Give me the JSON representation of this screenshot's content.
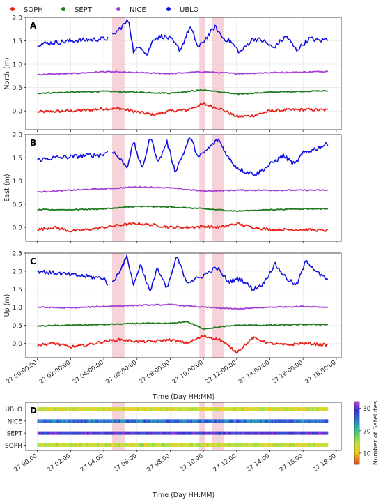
{
  "legend": [
    {
      "name": "SOPH",
      "color": "#e8221b"
    },
    {
      "name": "SEPT",
      "color": "#1f7a1f"
    },
    {
      "name": "NICE",
      "color": "#a33fd6"
    },
    {
      "name": "UBLO",
      "color": "#1010e0"
    }
  ],
  "shade_color": "#f2c4cc",
  "chart_data": [
    {
      "type": "line",
      "panel": "A",
      "xlabel": "",
      "ylabel": "North  (m)",
      "xlim": [
        -0.7,
        18.3
      ],
      "ylim": [
        -0.4,
        2.0
      ],
      "yticks": [
        "0.0",
        "0.5",
        "1.0",
        "1.5",
        "2.0"
      ],
      "ytick_values": [
        0.0,
        0.5,
        1.0,
        1.5,
        2.0
      ],
      "shaded_intervals_hours": [
        [
          4.5,
          5.25
        ],
        [
          9.75,
          10.1
        ],
        [
          10.5,
          11.25
        ]
      ],
      "series": [
        {
          "name": "SOPH",
          "x": [
            0,
            1,
            2,
            3,
            4,
            5,
            6,
            7,
            8,
            9,
            10,
            11,
            12,
            13,
            14,
            15,
            16,
            17.5
          ],
          "y": [
            -0.02,
            -0.01,
            0.0,
            0.02,
            0.05,
            0.05,
            -0.02,
            -0.08,
            0.0,
            0.02,
            0.15,
            0.05,
            -0.12,
            -0.1,
            0.0,
            0.02,
            0.03,
            0.02
          ]
        },
        {
          "name": "SEPT",
          "x": [
            0,
            2,
            4,
            6,
            8,
            10,
            12,
            14,
            16,
            17.5
          ],
          "y": [
            0.38,
            0.4,
            0.42,
            0.4,
            0.38,
            0.45,
            0.36,
            0.4,
            0.42,
            0.43
          ]
        },
        {
          "name": "NICE",
          "x": [
            0,
            2,
            4,
            6,
            8,
            10,
            12,
            14,
            16,
            17.5
          ],
          "y": [
            0.78,
            0.8,
            0.84,
            0.82,
            0.8,
            0.84,
            0.8,
            0.82,
            0.83,
            0.85
          ]
        },
        {
          "name": "UBLO",
          "x": [
            0,
            1,
            2,
            3,
            4,
            4.4,
            5.5,
            5.8,
            6.2,
            6.6,
            7,
            7.5,
            8,
            8.6,
            9.2,
            9.7,
            10.7,
            11.2,
            11.6,
            12.2,
            13,
            13.6,
            14.2,
            15,
            15.6,
            16.4,
            17,
            17.5
          ],
          "y": [
            1.43,
            1.46,
            1.5,
            1.52,
            1.54,
            1.56,
            1.95,
            1.25,
            1.4,
            1.2,
            1.55,
            1.6,
            1.55,
            1.3,
            1.8,
            1.35,
            1.8,
            1.55,
            1.5,
            1.25,
            1.55,
            1.5,
            1.35,
            1.6,
            1.3,
            1.55,
            1.5,
            1.55
          ]
        }
      ]
    },
    {
      "type": "line",
      "panel": "B",
      "xlabel": "",
      "ylabel": "East  (m)",
      "xlim": [
        -0.7,
        18.3
      ],
      "ylim": [
        -0.3,
        2.0
      ],
      "yticks": [
        "0.0",
        "0.5",
        "1.0",
        "1.5",
        "2.0"
      ],
      "ytick_values": [
        0.0,
        0.5,
        1.0,
        1.5,
        2.0
      ],
      "shaded_intervals_hours": [
        [
          4.5,
          5.25
        ],
        [
          9.75,
          10.1
        ],
        [
          10.5,
          11.25
        ]
      ],
      "series": [
        {
          "name": "SOPH",
          "x": [
            0,
            1,
            2,
            3,
            4,
            5,
            6,
            7,
            8,
            9,
            10,
            11,
            12,
            13,
            14,
            15,
            16,
            17.5
          ],
          "y": [
            -0.05,
            0.0,
            -0.08,
            -0.05,
            0.0,
            0.05,
            0.08,
            0.05,
            0.0,
            0.0,
            0.02,
            0.0,
            0.08,
            0.0,
            -0.05,
            -0.05,
            -0.05,
            -0.07
          ]
        },
        {
          "name": "SEPT",
          "x": [
            0,
            2,
            4,
            6,
            8,
            10,
            12,
            14,
            16,
            17.5
          ],
          "y": [
            0.38,
            0.38,
            0.4,
            0.45,
            0.44,
            0.4,
            0.35,
            0.38,
            0.4,
            0.4
          ]
        },
        {
          "name": "NICE",
          "x": [
            0,
            2,
            4,
            6,
            8,
            10,
            12,
            14,
            16,
            17.5
          ],
          "y": [
            0.76,
            0.8,
            0.83,
            0.87,
            0.85,
            0.78,
            0.8,
            0.8,
            0.8,
            0.8
          ]
        },
        {
          "name": "UBLO",
          "x": [
            0,
            1,
            2,
            3,
            4,
            4.4,
            5.4,
            5.8,
            6.3,
            6.8,
            7.3,
            7.8,
            8.3,
            8.8,
            9.2,
            9.7,
            10.9,
            11.5,
            12,
            12.5,
            13.2,
            14,
            14.8,
            15.5,
            16,
            16.8,
            17.5
          ],
          "y": [
            1.45,
            1.5,
            1.52,
            1.55,
            1.57,
            1.7,
            1.3,
            1.85,
            1.25,
            1.95,
            1.4,
            1.85,
            1.2,
            1.6,
            1.95,
            1.5,
            1.9,
            1.5,
            1.3,
            1.2,
            1.15,
            1.35,
            1.55,
            1.35,
            1.6,
            1.7,
            1.8
          ]
        }
      ]
    },
    {
      "type": "line",
      "panel": "C",
      "xlabel": "Time (Day HH:MM)",
      "ylabel": "Up  (m)",
      "xlim": [
        -0.7,
        18.3
      ],
      "ylim": [
        -0.4,
        2.5
      ],
      "yticks": [
        "0.0",
        "0.5",
        "1.0",
        "1.5",
        "2.0",
        "2.5"
      ],
      "ytick_values": [
        0.0,
        0.5,
        1.0,
        1.5,
        2.0,
        2.5
      ],
      "xticks": [
        "27 00:00:00",
        "27 02:00:00",
        "27 04:00:00",
        "27 06:00:00",
        "27 08:00:00",
        "27 10:00:00",
        "27 12:00:00",
        "27 14:00:00",
        "27 16:00:00",
        "27 18:00:00"
      ],
      "xtick_hours": [
        0,
        2,
        4,
        6,
        8,
        10,
        12,
        14,
        16,
        18
      ],
      "shaded_intervals_hours": [
        [
          4.5,
          5.25
        ],
        [
          9.75,
          10.1
        ],
        [
          10.5,
          11.25
        ]
      ],
      "series": [
        {
          "name": "SOPH",
          "x": [
            0,
            1,
            2,
            3,
            4,
            5,
            6,
            7,
            8,
            9,
            10,
            11,
            12,
            13,
            14,
            15,
            16,
            17.5
          ],
          "y": [
            -0.05,
            0.0,
            -0.1,
            -0.05,
            0.05,
            0.1,
            0.05,
            0.05,
            0.1,
            0.0,
            0.2,
            0.1,
            -0.25,
            0.15,
            0.0,
            -0.05,
            0.0,
            -0.05
          ]
        },
        {
          "name": "SEPT",
          "x": [
            0,
            2,
            4,
            6,
            8,
            9,
            10,
            12,
            14,
            16,
            17.5
          ],
          "y": [
            0.48,
            0.5,
            0.52,
            0.55,
            0.55,
            0.6,
            0.4,
            0.5,
            0.5,
            0.52,
            0.52
          ]
        },
        {
          "name": "NICE",
          "x": [
            0,
            2,
            4,
            6,
            8,
            10,
            12,
            14,
            16,
            17.5
          ],
          "y": [
            1.0,
            0.98,
            1.02,
            1.05,
            1.07,
            1.0,
            0.95,
            1.0,
            1.02,
            1.0
          ]
        },
        {
          "name": "UBLO",
          "x": [
            0,
            1,
            2,
            3,
            4,
            4.4,
            5.4,
            5.8,
            6.2,
            6.8,
            7.2,
            7.8,
            8.4,
            9,
            9.7,
            10.8,
            11.5,
            12.2,
            13,
            13.6,
            14.3,
            15,
            15.6,
            16.2,
            17,
            17.5
          ],
          "y": [
            2.0,
            1.95,
            1.9,
            1.85,
            1.8,
            1.55,
            2.4,
            1.6,
            2.2,
            1.4,
            2.1,
            1.5,
            2.4,
            1.7,
            1.8,
            2.1,
            1.7,
            1.8,
            1.5,
            1.65,
            2.2,
            1.8,
            1.6,
            2.3,
            1.9,
            1.75
          ]
        }
      ]
    },
    {
      "type": "heatmap",
      "panel": "D",
      "xlabel": "Time (Day HH:MM)",
      "colorbar_label": "Number of Satellites",
      "colorbar_ticks": [
        10,
        20,
        30
      ],
      "clim": [
        5,
        33
      ],
      "rows": [
        "UBLO",
        "NICE",
        "SEPT",
        "SOPH"
      ],
      "xticks": [
        "27 00:00",
        "27 02:00",
        "27 04:00",
        "27 06:00",
        "27 08:00",
        "27 10:00",
        "27 12:00",
        "27 14:00",
        "27 16:00",
        "27 18:00"
      ],
      "xtick_hours": [
        0,
        2,
        4,
        6,
        8,
        10,
        12,
        14,
        16,
        18
      ],
      "shaded_intervals_hours": [
        [
          4.5,
          5.25
        ],
        [
          9.75,
          10.1
        ],
        [
          10.5,
          11.25
        ]
      ],
      "satellite_counts_approx": {
        "UBLO": 13,
        "NICE": 25,
        "SEPT": 29,
        "SOPH": 14
      }
    }
  ]
}
